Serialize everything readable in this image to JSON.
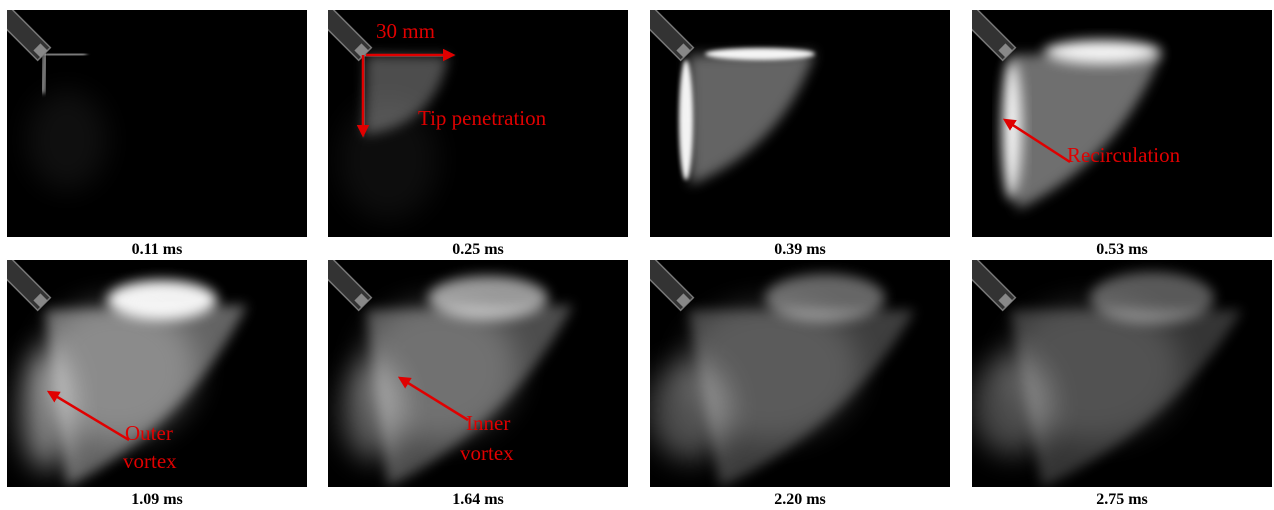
{
  "panels": [
    {
      "caption": "0.11 ms"
    },
    {
      "caption": "0.25 ms",
      "annotations": [
        [
          "30 mm"
        ],
        [
          "Tip penetration"
        ]
      ]
    },
    {
      "caption": "0.39 ms"
    },
    {
      "caption": "0.53 ms",
      "annotations": [
        [
          "Recirculation"
        ]
      ]
    },
    {
      "caption": "1.09 ms",
      "annotations": [
        [
          "Outer",
          "vortex"
        ]
      ]
    },
    {
      "caption": "1.64 ms",
      "annotations": [
        [
          "Inner",
          "vortex"
        ]
      ]
    },
    {
      "caption": "2.20 ms"
    },
    {
      "caption": "2.75 ms"
    }
  ]
}
